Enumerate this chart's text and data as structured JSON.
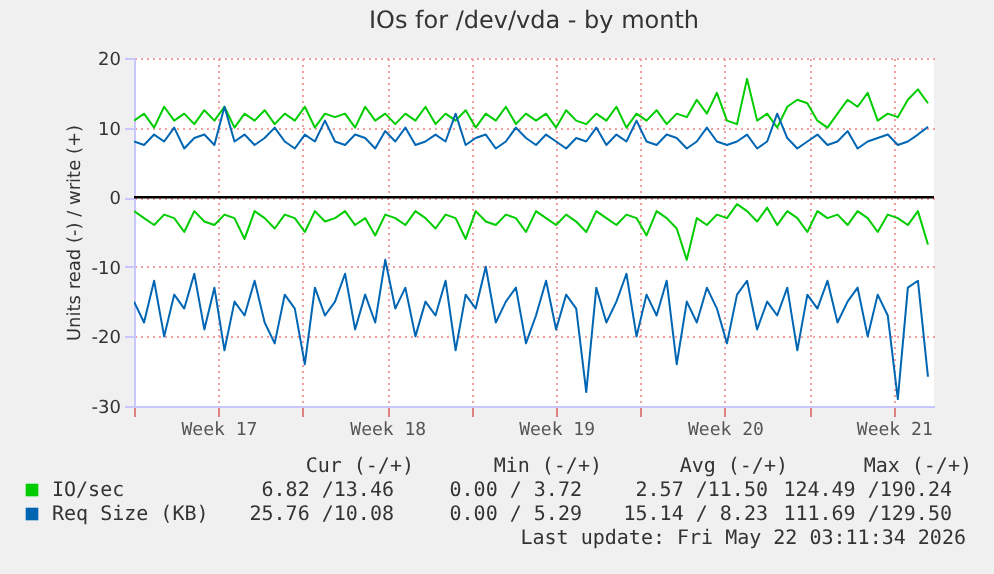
{
  "chart_data": {
    "type": "line",
    "title": "IOs for /dev/vda - by month",
    "ylabel": "Units read (-) / write (+)",
    "x": [
      "2026-04-20T00:00",
      "2026-04-20T10:00",
      "2026-04-20T20:00",
      "2026-04-21T06:00",
      "2026-04-21T16:00",
      "2026-04-22T02:00",
      "2026-04-22T12:00",
      "2026-04-22T22:00",
      "2026-04-23T08:00",
      "2026-04-23T18:00",
      "2026-04-24T04:00",
      "2026-04-24T14:00",
      "2026-04-25T00:00",
      "2026-04-25T10:00",
      "2026-04-25T20:00",
      "2026-04-26T06:00",
      "2026-04-26T16:00",
      "2026-04-27T02:00",
      "2026-04-27T12:00",
      "2026-04-27T22:00",
      "2026-04-28T08:00",
      "2026-04-28T18:00",
      "2026-04-29T04:00",
      "2026-04-29T14:00",
      "2026-04-30T00:00",
      "2026-04-30T10:00",
      "2026-04-30T20:00",
      "2026-05-01T06:00",
      "2026-05-01T16:00",
      "2026-05-02T02:00",
      "2026-05-02T12:00",
      "2026-05-02T22:00",
      "2026-05-03T08:00",
      "2026-05-03T18:00",
      "2026-05-04T04:00",
      "2026-05-04T14:00",
      "2026-05-05T00:00",
      "2026-05-05T10:00",
      "2026-05-05T20:00",
      "2026-05-06T06:00",
      "2026-05-06T16:00",
      "2026-05-07T02:00",
      "2026-05-07T12:00",
      "2026-05-07T22:00",
      "2026-05-08T08:00",
      "2026-05-08T18:00",
      "2026-05-09T04:00",
      "2026-05-09T14:00",
      "2026-05-10T00:00",
      "2026-05-10T10:00",
      "2026-05-10T20:00",
      "2026-05-11T06:00",
      "2026-05-11T16:00",
      "2026-05-12T02:00",
      "2026-05-12T12:00",
      "2026-05-12T22:00",
      "2026-05-13T08:00",
      "2026-05-13T18:00",
      "2026-05-14T04:00",
      "2026-05-14T14:00",
      "2026-05-15T00:00",
      "2026-05-15T10:00",
      "2026-05-15T20:00",
      "2026-05-16T06:00",
      "2026-05-16T16:00",
      "2026-05-17T02:00",
      "2026-05-17T12:00",
      "2026-05-17T22:00",
      "2026-05-18T08:00",
      "2026-05-18T18:00",
      "2026-05-19T04:00",
      "2026-05-19T14:00",
      "2026-05-20T00:00",
      "2026-05-20T10:00",
      "2026-05-20T20:00",
      "2026-05-21T06:00",
      "2026-05-21T16:00",
      "2026-05-22T02:00",
      "2026-05-22T12:00",
      "2026-05-22T22:00"
    ],
    "series": [
      {
        "name": "IO/sec",
        "color": "#00cc00",
        "values": [
          11,
          12,
          10,
          13,
          11,
          12,
          10.5,
          12.5,
          11,
          13,
          10,
          12,
          11,
          12.5,
          10.5,
          12,
          11,
          13,
          10,
          12,
          11.5,
          12,
          10,
          13,
          11,
          12,
          10.5,
          12,
          11,
          13,
          10.5,
          12,
          11,
          12.5,
          10,
          12,
          11,
          13,
          10.5,
          12,
          11,
          12,
          10,
          12.5,
          11,
          10.5,
          12,
          11,
          13,
          10,
          12,
          11,
          12.5,
          10.5,
          12,
          11.5,
          14,
          12,
          15,
          11,
          10.5,
          17,
          11,
          12,
          10,
          13,
          14,
          13.5,
          11,
          10,
          12,
          14,
          13,
          15,
          11,
          12,
          11.5,
          14,
          15.5,
          13.5
        ]
      },
      {
        "color": "#00cc00",
        "values": [
          -2,
          -3,
          -4,
          -2.5,
          -3,
          -5,
          -2,
          -3.5,
          -4,
          -2.5,
          -3,
          -6,
          -2,
          -3,
          -4.5,
          -2.5,
          -3,
          -5,
          -2,
          -3.5,
          -3,
          -2,
          -4,
          -3,
          -5.5,
          -2.5,
          -3,
          -4,
          -2,
          -3,
          -4.5,
          -2.5,
          -3,
          -6,
          -2,
          -3.5,
          -4,
          -2.5,
          -3,
          -5,
          -2,
          -3,
          -4,
          -2.5,
          -3.5,
          -5,
          -2,
          -3,
          -4,
          -2.5,
          -3,
          -5.5,
          -2,
          -3,
          -4.5,
          -9,
          -3,
          -4,
          -2.5,
          -3,
          -1,
          -2,
          -3.5,
          -1.5,
          -4,
          -2,
          -3,
          -5,
          -2,
          -3,
          -2.5,
          -4,
          -2,
          -3,
          -5,
          -2.5,
          -3,
          -4,
          -2,
          -6.8
        ]
      },
      {
        "name": "Req Size (KB)",
        "color": "#0066b3",
        "values": [
          8,
          7.5,
          9,
          8,
          10,
          7,
          8.5,
          9,
          7.5,
          13,
          8,
          9,
          7.5,
          8.5,
          10,
          8,
          7,
          9,
          8,
          11,
          8,
          7.5,
          9,
          8.5,
          7,
          9.5,
          8,
          10,
          7.5,
          8,
          9,
          8,
          12,
          7.5,
          8.5,
          9,
          7,
          8,
          10,
          8.5,
          7.5,
          9,
          8,
          7,
          8.5,
          8,
          10,
          7.5,
          9,
          8,
          11,
          8,
          7.5,
          9,
          8.5,
          7,
          8,
          10,
          8,
          7.5,
          8,
          9,
          7,
          8,
          12,
          8.5,
          7,
          8,
          9,
          7.5,
          8,
          9.5,
          7,
          8,
          8.5,
          9,
          7.5,
          8,
          9,
          10.1
        ]
      },
      {
        "color": "#0066b3",
        "values": [
          -15,
          -18,
          -12,
          -20,
          -14,
          -16,
          -11,
          -19,
          -13,
          -22,
          -15,
          -17,
          -12,
          -18,
          -21,
          -14,
          -16,
          -24,
          -13,
          -17,
          -15,
          -11,
          -19,
          -14,
          -18,
          -9,
          -16,
          -13,
          -20,
          -15,
          -17,
          -12,
          -22,
          -14,
          -16,
          -10,
          -18,
          -15,
          -13,
          -21,
          -17,
          -12,
          -19,
          -14,
          -16,
          -28,
          -13,
          -18,
          -15,
          -11,
          -20,
          -14,
          -17,
          -12,
          -24,
          -15,
          -18,
          -13,
          -16,
          -21,
          -14,
          -12,
          -19,
          -15,
          -17,
          -13,
          -22,
          -14,
          -16,
          -12,
          -18,
          -15,
          -13,
          -20,
          -14,
          -17,
          -29,
          -13,
          -12,
          -25.8
        ]
      }
    ],
    "xlim": [
      "2026-04-20T00:00",
      "2026-05-23T04:00"
    ],
    "xticks": [
      {
        "value": "2026-04-20T00:00",
        "label": null
      },
      {
        "value": "2026-04-23T12:00",
        "label": "Week 17"
      },
      {
        "value": "2026-04-27T00:00",
        "label": null
      },
      {
        "value": "2026-04-30T12:00",
        "label": "Week 18"
      },
      {
        "value": "2026-05-04T00:00",
        "label": null
      },
      {
        "value": "2026-05-07T12:00",
        "label": "Week 19"
      },
      {
        "value": "2026-05-11T00:00",
        "label": null
      },
      {
        "value": "2026-05-14T12:00",
        "label": "Week 20"
      },
      {
        "value": "2026-05-18T00:00",
        "label": null
      },
      {
        "value": "2026-05-21T12:00",
        "label": "Week 21"
      }
    ],
    "ylim": [
      -30,
      20
    ],
    "yticks": [
      -30,
      -20,
      -10,
      0,
      10,
      20
    ],
    "grid": true,
    "legend": "bottom left",
    "ref_lines": [
      {
        "axis": "y",
        "value": 0,
        "color": "#000000"
      }
    ],
    "annotations": [
      "Cur (-/+)",
      "Min (-/+)",
      "Avg (-/+)",
      "Max (-/+)",
      "6.82 /13.46",
      "0.00 / 3.72",
      "2.57 /11.50",
      "124.49 /190.24",
      "25.76 /10.08",
      "0.00 / 5.29",
      "15.14 / 8.23",
      "111.69 /129.50",
      "Last update: Fri May 22 03:11:34 2026"
    ]
  }
}
